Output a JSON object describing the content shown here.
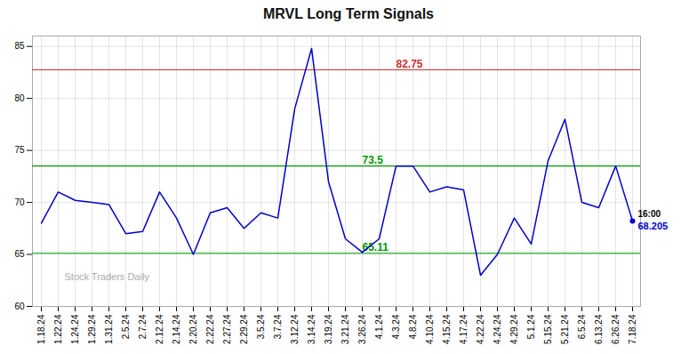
{
  "chart_data": {
    "type": "line",
    "title": "MRVL Long Term Signals",
    "categories": [
      "1.18.24",
      "1.22.24",
      "1.24.24",
      "1.29.24",
      "1.31.24",
      "2.5.24",
      "2.7.24",
      "2.12.24",
      "2.14.24",
      "2.20.24",
      "2.22.24",
      "2.27.24",
      "2.29.24",
      "3.5.24",
      "3.7.24",
      "3.12.24",
      "3.14.24",
      "3.19.24",
      "3.21.24",
      "3.26.24",
      "4.1.24",
      "4.3.24",
      "4.8.24",
      "4.10.24",
      "4.15.24",
      "4.17.24",
      "4.22.24",
      "4.24.24",
      "4.29.24",
      "5.1.24",
      "5.15.24",
      "5.21.24",
      "6.5.24",
      "6.13.24",
      "6.26.24",
      "7.18.24"
    ],
    "values": [
      68.0,
      71.0,
      70.2,
      70.0,
      69.8,
      67.0,
      67.2,
      71.0,
      68.5,
      65.0,
      69.0,
      69.5,
      67.5,
      69.0,
      68.5,
      79.0,
      84.8,
      72.0,
      66.5,
      65.2,
      66.5,
      73.5,
      73.5,
      71.0,
      71.5,
      71.2,
      63.0,
      65.0,
      68.5,
      66.0,
      74.0,
      78.0,
      70.0,
      69.5,
      73.5,
      68.205
    ],
    "color": "#0000cc",
    "ylim": [
      60,
      86
    ],
    "yticks": [
      60,
      65,
      70,
      75,
      80,
      85
    ],
    "grid": true,
    "reference_lines": [
      {
        "y": 82.75,
        "label": "82.75",
        "color": "#cc3333",
        "x": "4.3.24"
      },
      {
        "y": 73.5,
        "label": "73.5",
        "color": "#009900",
        "x": "3.26.24"
      },
      {
        "y": 65.11,
        "label": "65.11",
        "color": "#009900",
        "x": "3.26.24"
      }
    ],
    "end_labels": [
      "16:00",
      "68.205"
    ],
    "watermark": "Stock Traders Daily"
  }
}
